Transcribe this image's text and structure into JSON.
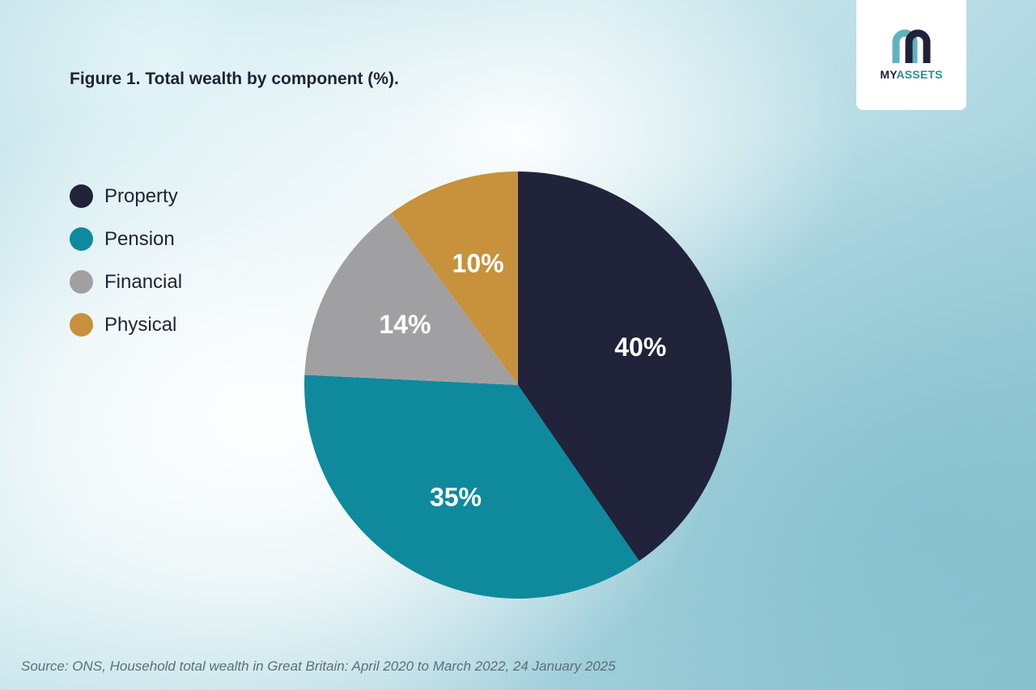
{
  "title": "Figure 1. Total wealth by component (%).",
  "logo": {
    "text_my": "MY",
    "text_assets": "ASSETS",
    "colors": {
      "dark": "#1f2238",
      "teal": "#2a8c9a"
    }
  },
  "source": "Source:  ONS, Household total wealth in Great Britain: April 2020 to March 2022, 24 January 2025",
  "chart_data": {
    "type": "pie",
    "title": "Figure 1. Total wealth by component (%).",
    "legend_position": "left",
    "slices": [
      {
        "name": "Property",
        "value": 40,
        "label": "40%",
        "color": "#20233a"
      },
      {
        "name": "Pension",
        "value": 35,
        "label": "35%",
        "color": "#0e8a9c"
      },
      {
        "name": "Financial",
        "value": 14,
        "label": "14%",
        "color": "#a0a0a2"
      },
      {
        "name": "Physical",
        "value": 10,
        "label": "10%",
        "color": "#c8913b"
      }
    ]
  }
}
